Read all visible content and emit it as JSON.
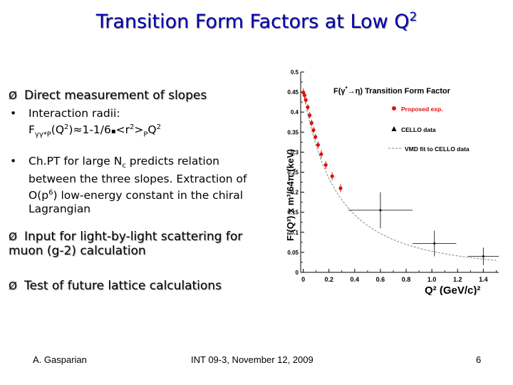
{
  "slide": {
    "title": "Transition Form Factors at Low Q",
    "title_sup": "2",
    "title_color": "#0000aa",
    "arrow_glyph": "Ø",
    "bullet_glyph": "•",
    "items": [
      {
        "label": "Direct measurement of slopes"
      },
      {
        "label": "Input for light-by-light scattering for muon (g-2) calculation"
      },
      {
        "label": "Test of future lattice calculations"
      }
    ],
    "bullets": [
      {
        "line1": "Interaction radii:",
        "line2_pre": "F",
        "line2_sub": "γγ*P",
        "line2_mid": "(Q",
        "line2_sup": "2",
        "line2_post": ")≈1-1/6",
        "line2_dot": "▪",
        "line2_r": "<r",
        "line2_rsup": "2",
        "line2_r2": ">",
        "line2_rsub": "P",
        "line2_q": "Q",
        "line2_qsup": "2"
      },
      {
        "text_pre": "Ch.PT for large N",
        "text_sub": "c",
        "text_mid": " predicts relation between the three slopes. Extraction of O(p",
        "text_sup": "6",
        "text_post": ") low-energy constant in the chiral Lagrangian"
      }
    ],
    "footer": {
      "author": "A. Gasparian",
      "event": "INT 09-3, November 12, 2009",
      "page": "6"
    }
  },
  "chart_data": {
    "type": "scatter",
    "title": "F(γ*→η) Transition Form Factor",
    "title_parts": {
      "pre": "F(γ",
      "sup": "*",
      "post": "→η) Transition Form Factor"
    },
    "xlabel": "Q² (GeV/c)²",
    "ylabel": "F²(Q²) x m³/64π (keV)",
    "xlim": [
      -0.02,
      1.52
    ],
    "ylim": [
      0,
      0.5
    ],
    "x_ticks": [
      0,
      0.2,
      0.4,
      0.6,
      0.8,
      1.0,
      1.2,
      1.4
    ],
    "x_tick_labels": [
      "0",
      "0.2",
      "0.4",
      "0.6",
      "0.8",
      "1.0",
      "1.2",
      "1.4"
    ],
    "y_ticks": [
      0,
      0.05,
      0.1,
      0.15,
      0.2,
      0.25,
      0.3,
      0.35,
      0.4,
      0.45,
      0.5
    ],
    "y_tick_labels": [
      "0",
      "0.05",
      "0.1",
      "0.15",
      "0.2",
      "0.25",
      "0.3",
      "0.35",
      "0.4",
      "0.45",
      "0.5"
    ],
    "grid": false,
    "legend_position": "top-right",
    "series": [
      {
        "name": "Proposed exp.",
        "marker": "circle",
        "color": "#dd1111",
        "points": [
          {
            "x": 0.001,
            "y": 0.449,
            "yerr": 0.01
          },
          {
            "x": 0.01,
            "y": 0.442,
            "yerr": 0.009
          },
          {
            "x": 0.02,
            "y": 0.43,
            "yerr": 0.008
          },
          {
            "x": 0.035,
            "y": 0.412,
            "yerr": 0.008
          },
          {
            "x": 0.05,
            "y": 0.392,
            "yerr": 0.008
          },
          {
            "x": 0.065,
            "y": 0.373,
            "yerr": 0.008
          },
          {
            "x": 0.08,
            "y": 0.355,
            "yerr": 0.008
          },
          {
            "x": 0.095,
            "y": 0.338,
            "yerr": 0.008
          },
          {
            "x": 0.115,
            "y": 0.318,
            "yerr": 0.009
          },
          {
            "x": 0.14,
            "y": 0.295,
            "yerr": 0.01
          },
          {
            "x": 0.175,
            "y": 0.268,
            "yerr": 0.01
          },
          {
            "x": 0.225,
            "y": 0.24,
            "yerr": 0.01
          },
          {
            "x": 0.29,
            "y": 0.21,
            "yerr": 0.01
          }
        ]
      },
      {
        "name": "CELLO data",
        "marker": "triangle",
        "color": "#000000",
        "points": [
          {
            "x": 0.6,
            "y": 0.155,
            "xerr": 0.25,
            "yerr": 0.045
          },
          {
            "x": 1.02,
            "y": 0.072,
            "xerr": 0.17,
            "yerr": 0.032
          },
          {
            "x": 1.4,
            "y": 0.04,
            "xerr": 0.12,
            "yerr": 0.022
          }
        ]
      },
      {
        "name": "VMD fit to CELLO data",
        "marker": "dashed-line",
        "color": "#888888",
        "curve": {
          "F0": 0.45,
          "Lambda2": 0.52
        }
      }
    ]
  }
}
